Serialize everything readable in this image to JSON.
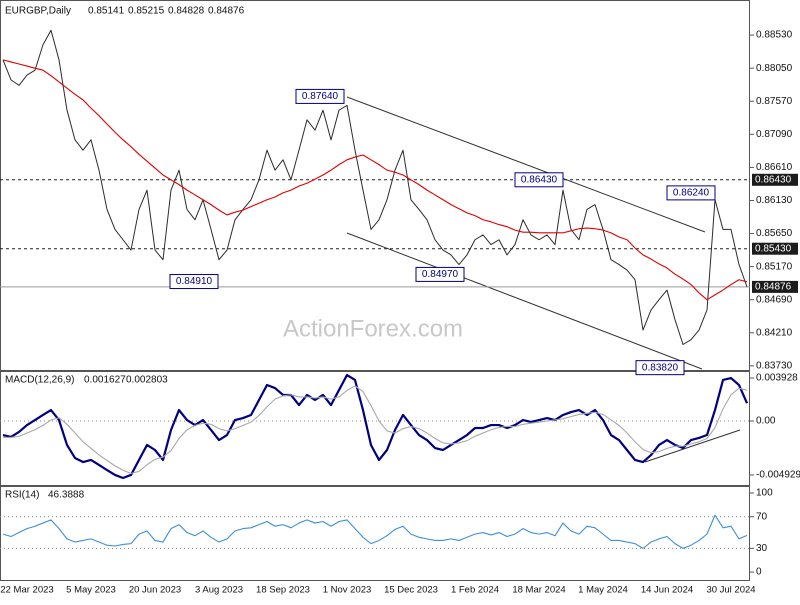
{
  "watermark": "ActionForex.com",
  "chart_data": [
    {
      "type": "line",
      "title": "EURGBP,Daily",
      "header_values": [
        0.85141,
        0.85215,
        0.84828,
        0.84876
      ],
      "series": [
        {
          "name": "EURGBP",
          "color": "#2b2b2b",
          "values": [
            0.8817,
            0.8788,
            0.878,
            0.8795,
            0.8802,
            0.8839,
            0.886,
            0.8817,
            0.8744,
            0.8701,
            0.8686,
            0.8701,
            0.8657,
            0.86,
            0.8571,
            0.8556,
            0.8541,
            0.86,
            0.8628,
            0.8541,
            0.8527,
            0.8628,
            0.8657,
            0.86,
            0.8585,
            0.8614,
            0.8571,
            0.8527,
            0.8541,
            0.8585,
            0.86,
            0.8614,
            0.8643,
            0.8686,
            0.8657,
            0.8672,
            0.8643,
            0.8686,
            0.873,
            0.8715,
            0.8744,
            0.8701,
            0.8744,
            0.8751,
            0.8686,
            0.8628,
            0.8571,
            0.8585,
            0.8614,
            0.8657,
            0.8686,
            0.8614,
            0.86,
            0.8585,
            0.8556,
            0.8541,
            0.8534,
            0.852,
            0.8534,
            0.8556,
            0.8563,
            0.8549,
            0.8556,
            0.8534,
            0.8549,
            0.8585,
            0.8563,
            0.8556,
            0.8563,
            0.8549,
            0.8628,
            0.8571,
            0.8556,
            0.86,
            0.8607,
            0.8571,
            0.8527,
            0.852,
            0.8512,
            0.8498,
            0.8425,
            0.8454,
            0.8469,
            0.8483,
            0.844,
            0.8404,
            0.8411,
            0.8425,
            0.8454,
            0.8614,
            0.8571,
            0.8571,
            0.852,
            0.84876
          ]
        },
        {
          "color": "#e00000",
          "values": [
            0.8817,
            0.8814,
            0.8811,
            0.8808,
            0.8805,
            0.8802,
            0.8794,
            0.8785,
            0.8776,
            0.8767,
            0.8759,
            0.8747,
            0.8736,
            0.8724,
            0.8712,
            0.8701,
            0.8691,
            0.868,
            0.867,
            0.866,
            0.865,
            0.8643,
            0.8636,
            0.8628,
            0.8621,
            0.8614,
            0.8607,
            0.8599,
            0.8592,
            0.8596,
            0.8599,
            0.8604,
            0.8609,
            0.8614,
            0.8618,
            0.8624,
            0.8628,
            0.8634,
            0.8638,
            0.8644,
            0.865,
            0.8657,
            0.8665,
            0.8672,
            0.8676,
            0.8679,
            0.8672,
            0.8665,
            0.8657,
            0.8654,
            0.865,
            0.8643,
            0.8636,
            0.8628,
            0.8621,
            0.8614,
            0.8607,
            0.8601,
            0.8595,
            0.8591,
            0.8585,
            0.8582,
            0.8578,
            0.8575,
            0.857,
            0.8567,
            0.8567,
            0.8566,
            0.8566,
            0.8566,
            0.8566,
            0.8569,
            0.8572,
            0.8573,
            0.8572,
            0.857,
            0.8566,
            0.856,
            0.8556,
            0.8544,
            0.8534,
            0.8528,
            0.8521,
            0.8515,
            0.8506,
            0.8499,
            0.8491,
            0.8479,
            0.8469,
            0.8476,
            0.8483,
            0.8491,
            0.8498,
            0.8495
          ]
        }
      ],
      "ylim": [
        0.8367,
        0.8901
      ],
      "yticks": [
        {
          "value": 0.8853,
          "label": "0.88530"
        },
        {
          "value": 0.8805,
          "label": "0.88050"
        },
        {
          "value": 0.8757,
          "label": "0.87570"
        },
        {
          "value": 0.8709,
          "label": "0.87090"
        },
        {
          "value": 0.8661,
          "label": "0.86610"
        },
        {
          "value": 0.8613,
          "label": "0.86130"
        },
        {
          "value": 0.8565,
          "label": "0.85650"
        },
        {
          "value": 0.8517,
          "label": "0.85170"
        },
        {
          "value": 0.8469,
          "label": "0.84690"
        },
        {
          "value": 0.8421,
          "label": "0.84210"
        },
        {
          "value": 0.8373,
          "label": "0.83730"
        }
      ],
      "grid": false,
      "levels": [
        {
          "value": 0.8643,
          "label": "0.86430",
          "style": "dashed"
        },
        {
          "value": 0.8543,
          "label": "0.85430",
          "style": "dashed"
        },
        {
          "value": 0.84876,
          "label": "0.84876",
          "style": "solid"
        }
      ],
      "annotations": [
        {
          "value": 0.8764,
          "label": "0.87640"
        },
        {
          "value": 0.8643,
          "label": "0.86430"
        },
        {
          "value": 0.8624,
          "label": "0.86240"
        },
        {
          "value": 0.8491,
          "label": "0.84910"
        },
        {
          "value": 0.8497,
          "label": "0.84970"
        },
        {
          "value": 0.8382,
          "label": "0.83820"
        }
      ]
    },
    {
      "type": "line",
      "title": "MACD(12,26,9)",
      "header_values": [
        0.001627,
        0.002803
      ],
      "series": [
        {
          "color": "#000080",
          "values": [
            -0.00128,
            -0.00146,
            -0.001,
            -0.00037,
            9e-05,
            0.00055,
            0.001,
            9e-05,
            -0.00219,
            -0.00338,
            -0.00375,
            -0.00356,
            -0.00402,
            -0.00448,
            -0.00493,
            -0.00521,
            -0.00493,
            -0.00356,
            -0.00219,
            -0.00265,
            -0.00356,
            -0.00082,
            0.001,
            9e-05,
            -0.00037,
            9e-05,
            -0.00082,
            -0.00174,
            -0.00128,
            9e-05,
            0.00027,
            0.00055,
            0.00192,
            0.00329,
            0.00301,
            0.00238,
            0.00238,
            0.00146,
            0.00238,
            0.00192,
            0.00238,
            0.00146,
            0.00283,
            0.0042,
            0.00375,
            0.001,
            -0.00219,
            -0.00356,
            -0.00265,
            -0.00082,
            0.00055,
            -0.00037,
            -0.00128,
            -0.00174,
            -0.00247,
            -0.00265,
            -0.00219,
            -0.00174,
            -0.00128,
            -0.00064,
            -0.00064,
            -0.00037,
            -0.00037,
            -0.00064,
            -0.00037,
            9e-05,
            -9e-05,
            9e-05,
            0.00027,
            9e-05,
            0.00055,
            0.00082,
            0.001,
            0.00055,
            0.001,
            9e-05,
            -0.00128,
            -0.00174,
            -0.00265,
            -0.00356,
            -0.00375,
            -0.00311,
            -0.00219,
            -0.00174,
            -0.00219,
            -0.00247,
            -0.00174,
            -0.00155,
            -0.00128,
            0.001,
            0.00375,
            0.00393,
            0.00329,
            0.001627
          ]
        },
        {
          "color": "#a8a8a8",
          "values": [
            -0.0015,
            -0.0015,
            -0.0014,
            -0.0011,
            -0.0008,
            -0.0004,
            0.0001,
            0.0003,
            -0.0003,
            -0.0011,
            -0.0019,
            -0.0025,
            -0.0031,
            -0.0036,
            -0.0041,
            -0.0045,
            -0.0048,
            -0.0046,
            -0.004,
            -0.0035,
            -0.0033,
            -0.0027,
            -0.0016,
            -0.0008,
            -0.0004,
            -0.0002,
            -0.0003,
            -0.0007,
            -0.0009,
            -0.0007,
            -0.0004,
            -0.0001,
            0.0005,
            0.0013,
            0.002,
            0.0023,
            0.0024,
            0.0022,
            0.0022,
            0.0021,
            0.0022,
            0.002,
            0.0022,
            0.0028,
            0.0032,
            0.0027,
            0.0014,
            0,
            -0.0009,
            -0.0011,
            -0.0007,
            -0.0005,
            -0.0007,
            -0.0011,
            -0.0016,
            -0.002,
            -0.0021,
            -0.002,
            -0.0018,
            -0.0014,
            -0.0011,
            -0.0008,
            -0.0006,
            -0.0005,
            -0.0005,
            -0.0003,
            -0.0002,
            -0.0001,
            0,
            0.0001,
            0.0002,
            0.0004,
            0.0006,
            0.0007,
            0.0008,
            0.0006,
            0.0001,
            -0.0004,
            -0.0011,
            -0.0019,
            -0.0026,
            -0.0029,
            -0.0028,
            -0.0025,
            -0.0023,
            -0.0023,
            -0.0021,
            -0.0019,
            -0.0016,
            -0.0006,
            0.0011,
            0.0024,
            0.003,
            0.002803
          ]
        }
      ],
      "ylim": [
        -0.00585,
        0.00448
      ],
      "yticks": [
        0.003928,
        {
          "value": 0,
          "label": "0.00"
        },
        -0.004929
      ]
    },
    {
      "type": "line",
      "title": "RSI(14)",
      "header_values": [
        46.3888
      ],
      "categories": [
        null,
        null,
        null,
        "22 Mar 2023",
        null,
        null,
        null,
        null,
        null,
        null,
        null,
        "5 May 2023",
        null,
        null,
        null,
        null,
        null,
        null,
        null,
        "20 Jun 2023",
        null,
        null,
        null,
        null,
        null,
        null,
        null,
        "3 Aug 2023",
        null,
        null,
        null,
        null,
        null,
        null,
        null,
        "18 Sep 2023",
        null,
        null,
        null,
        null,
        null,
        null,
        null,
        "1 Nov 2023",
        null,
        null,
        null,
        null,
        null,
        null,
        null,
        "15 Dec 2023",
        null,
        null,
        null,
        null,
        null,
        null,
        null,
        "1 Feb 2024",
        null,
        null,
        null,
        null,
        null,
        null,
        null,
        "18 Mar 2024",
        null,
        null,
        null,
        null,
        null,
        null,
        null,
        "1 May 2024",
        null,
        null,
        null,
        null,
        null,
        null,
        null,
        "14 Jun 2024",
        null,
        null,
        null,
        null,
        null,
        null,
        null,
        "30 Jul 2024",
        null,
        null
      ],
      "series": [
        {
          "color": "#3d8fd6",
          "values": [
            48,
            45,
            50,
            55,
            58,
            62,
            66,
            55,
            42,
            38,
            40,
            42,
            38,
            34,
            33,
            35,
            36,
            48,
            52,
            40,
            38,
            55,
            60,
            50,
            46,
            52,
            44,
            38,
            42,
            52,
            55,
            56,
            60,
            64,
            58,
            60,
            56,
            62,
            66,
            62,
            64,
            58,
            64,
            66,
            55,
            44,
            36,
            40,
            46,
            54,
            58,
            48,
            44,
            42,
            40,
            40,
            42,
            40,
            44,
            48,
            50,
            47,
            50,
            45,
            48,
            55,
            50,
            48,
            50,
            46,
            62,
            52,
            48,
            58,
            56,
            48,
            40,
            40,
            38,
            36,
            30,
            38,
            42,
            45,
            36,
            30,
            34,
            40,
            48,
            72,
            56,
            58,
            42,
            46.3888
          ]
        }
      ],
      "ylim": [
        -10,
        107.6
      ],
      "yticks": [
        100,
        70,
        30,
        0
      ]
    }
  ]
}
